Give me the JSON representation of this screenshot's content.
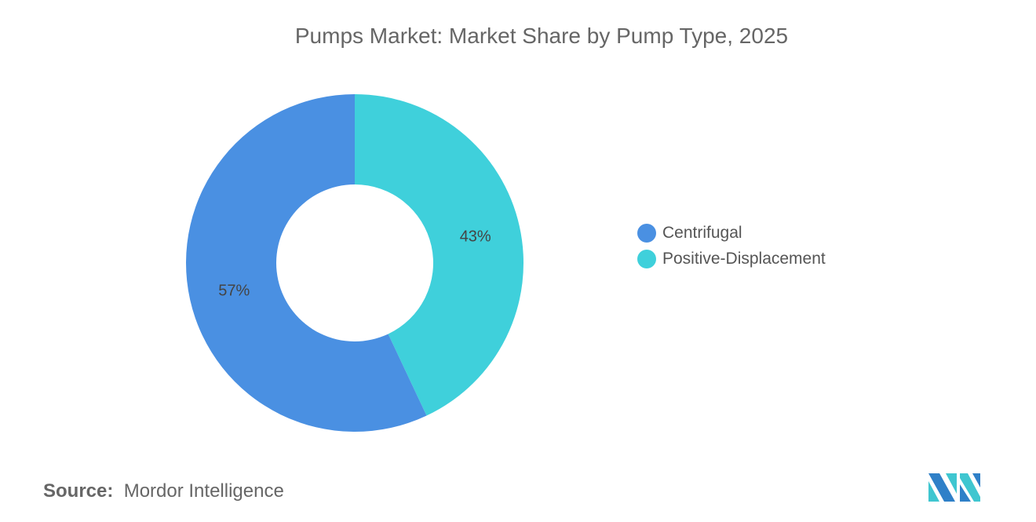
{
  "chart_data": {
    "type": "pie",
    "title": "Pumps Market: Market Share by Pump Type, 2025",
    "donut": true,
    "categories": [
      "Centrifugal",
      "Positive-Displacement"
    ],
    "values": [
      57,
      43
    ],
    "labels": [
      "57%",
      "43%"
    ],
    "colors": [
      "#4a90e2",
      "#3fd0db"
    ],
    "legend_position": "right"
  },
  "source": {
    "label": "Source:",
    "value": "Mordor Intelligence"
  },
  "logo": {
    "text": "Mordor Intelligence"
  }
}
